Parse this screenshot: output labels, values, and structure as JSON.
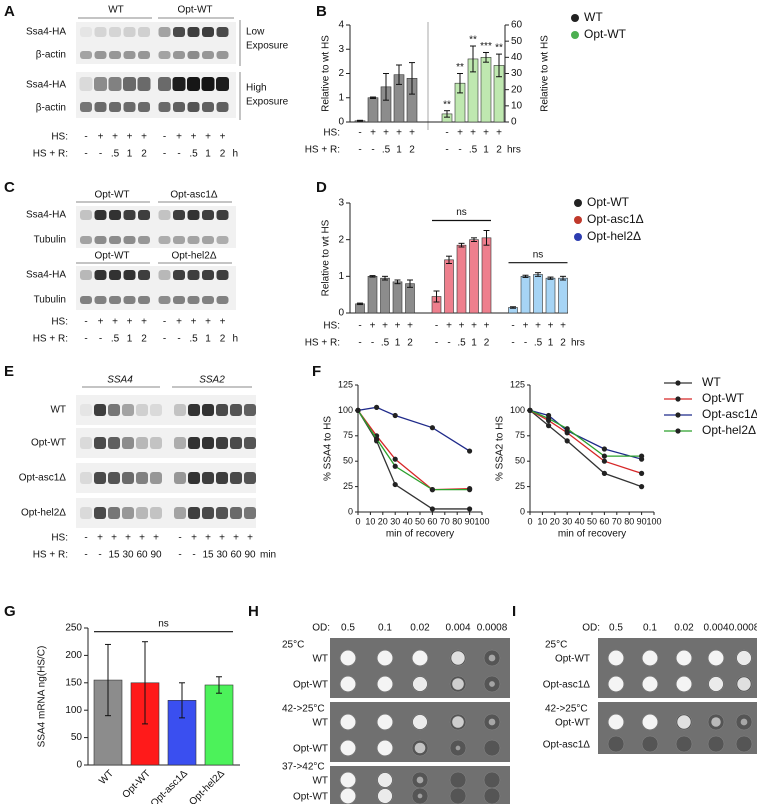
{
  "panel_labels": [
    "A",
    "B",
    "C",
    "D",
    "E",
    "F",
    "G",
    "H",
    "I"
  ],
  "blot_a": {
    "headers": [
      "WT",
      "Opt-WT"
    ],
    "rows": [
      "Ssa4-HA",
      "β-actin",
      "Ssa4-HA",
      "β-actin"
    ],
    "exposure_labels": [
      [
        "Low",
        "Exposure"
      ],
      [
        "High",
        "Exposure"
      ]
    ],
    "conditions": [
      {
        "label": "HS:",
        "values": [
          "-",
          "+",
          "+",
          "+",
          "+",
          "-",
          "+",
          "+",
          "+",
          "+"
        ]
      },
      {
        "label": "HS + R:",
        "values": [
          "-",
          "-",
          ".5",
          "1",
          "2",
          "-",
          "-",
          ".5",
          "1",
          "2"
        ]
      }
    ],
    "condition_unit": "h"
  },
  "blot_c": {
    "headers": [
      "Opt-WT",
      "Opt-asc1Δ",
      "Opt-WT",
      "Opt-hel2Δ"
    ],
    "rows": [
      "Ssa4-HA",
      "Tubulin",
      "Ssa4-HA",
      "Tubulin"
    ],
    "conditions": [
      {
        "label": "HS:",
        "values": [
          "-",
          "+",
          "+",
          "+",
          "+",
          "-",
          "+",
          "+",
          "+",
          "+"
        ]
      },
      {
        "label": "HS + R:",
        "values": [
          "-",
          "-",
          ".5",
          "1",
          "2",
          "-",
          "-",
          ".5",
          "1",
          "2"
        ]
      }
    ],
    "condition_unit": "h"
  },
  "blot_e": {
    "headers": [
      "SSA4",
      "SSA2"
    ],
    "rows": [
      "WT",
      "Opt-WT",
      "Opt-asc1Δ",
      "Opt-hel2Δ"
    ],
    "conditions": [
      {
        "label": "HS:",
        "values": [
          "-",
          "+",
          "+",
          "+",
          "+",
          "+",
          "-",
          "+",
          "+",
          "+",
          "+",
          "+"
        ]
      },
      {
        "label": "HS + R:",
        "values": [
          "-",
          "-",
          "15",
          "30",
          "60",
          "90",
          "-",
          "-",
          "15",
          "30",
          "60",
          "90"
        ]
      }
    ],
    "condition_unit": "min"
  },
  "chart_data": [
    {
      "type": "bar",
      "y_label": "Relative to wt HS",
      "y2_label": "Relative to wt HS",
      "ylim": [
        0,
        4
      ],
      "yticks": [
        0,
        1,
        2,
        3,
        4
      ],
      "y2lim": [
        0,
        60
      ],
      "y2ticks": [
        0,
        10,
        20,
        30,
        40,
        50,
        60
      ],
      "conditions": [
        {
          "label": "HS:",
          "values": [
            "-",
            "+",
            "+",
            "+",
            "+",
            "-",
            "+",
            "+",
            "+",
            "+"
          ]
        },
        {
          "label": "HS + R:",
          "values": [
            "-",
            "-",
            ".5",
            "1",
            "2",
            "-",
            "-",
            ".5",
            "1",
            "2"
          ]
        }
      ],
      "condition_unit": "hrs",
      "series": [
        {
          "name": "WT",
          "color": "#8c8c8c",
          "marker_color": "#222222",
          "values": [
            0.05,
            1.0,
            1.45,
            1.95,
            1.8,
            null,
            null,
            null,
            null,
            null
          ],
          "errors": [
            0.02,
            0.03,
            0.55,
            0.4,
            0.65,
            null,
            null,
            null,
            null,
            null
          ]
        },
        {
          "name": "Opt-WT",
          "color": "#bfe8b0",
          "marker_color": "#4caf50",
          "axis": "y2",
          "values": [
            null,
            null,
            null,
            null,
            null,
            5,
            24,
            39,
            40,
            35
          ],
          "errors": [
            null,
            null,
            null,
            null,
            null,
            2,
            6,
            8,
            3,
            7
          ]
        }
      ],
      "significance": [
        null,
        null,
        null,
        null,
        null,
        "**",
        "**",
        "**",
        "***",
        "**"
      ],
      "legend": true
    },
    {
      "type": "bar",
      "y_label": "Relative to wt HS",
      "ylim": [
        0,
        3
      ],
      "yticks": [
        0,
        1,
        2,
        3
      ],
      "conditions": [
        {
          "label": "HS:",
          "values": [
            "-",
            "+",
            "+",
            "+",
            "+",
            "-",
            "+",
            "+",
            "+",
            "+",
            "-",
            "+",
            "+",
            "+",
            "+"
          ]
        },
        {
          "label": "HS + R:",
          "values": [
            "-",
            "-",
            ".5",
            "1",
            "2",
            "-",
            "-",
            ".5",
            "1",
            "2",
            "-",
            "-",
            ".5",
            "1",
            "2"
          ]
        }
      ],
      "condition_unit": "hrs",
      "series": [
        {
          "name": "Opt-WT",
          "color": "#8c8c8c",
          "marker_color": "#222222",
          "values": [
            0.25,
            1.0,
            0.95,
            0.85,
            0.8,
            null,
            null,
            null,
            null,
            null,
            null,
            null,
            null,
            null,
            null
          ],
          "errors": [
            0.02,
            0.02,
            0.05,
            0.05,
            0.1,
            null,
            null,
            null,
            null,
            null,
            null,
            null,
            null,
            null,
            null
          ]
        },
        {
          "name": "Opt-asc1Δ",
          "color": "#ee7f8d",
          "marker_color": "#c0392b",
          "values": [
            null,
            null,
            null,
            null,
            null,
            0.45,
            1.45,
            1.85,
            2.0,
            2.05,
            null,
            null,
            null,
            null,
            null
          ],
          "errors": [
            null,
            null,
            null,
            null,
            null,
            0.15,
            0.1,
            0.05,
            0.05,
            0.2,
            null,
            null,
            null,
            null,
            null
          ]
        },
        {
          "name": "Opt-hel2Δ",
          "color": "#a6d4f5",
          "marker_color": "#2c3cb0",
          "values": [
            null,
            null,
            null,
            null,
            null,
            null,
            null,
            null,
            null,
            null,
            0.15,
            1.0,
            1.05,
            0.95,
            0.95
          ],
          "errors": [
            null,
            null,
            null,
            null,
            null,
            null,
            null,
            null,
            null,
            null,
            0.02,
            0.03,
            0.05,
            0.03,
            0.05
          ]
        }
      ],
      "annotations": [
        {
          "text": "ns",
          "series": 1
        },
        {
          "text": "ns",
          "series": 2
        }
      ],
      "legend": true
    },
    {
      "type": "line",
      "x": [
        0,
        15,
        30,
        60,
        90
      ],
      "x_label": "min of recovery",
      "y_label": "% SSA4 to HS",
      "xlim": [
        0,
        100
      ],
      "xticks": [
        0,
        10,
        20,
        30,
        40,
        50,
        60,
        70,
        80,
        90,
        100
      ],
      "ylim": [
        0,
        125
      ],
      "yticks": [
        0,
        25,
        50,
        75,
        100,
        125
      ],
      "series": [
        {
          "color": "#333333",
          "values": [
            100,
            70,
            27,
            3,
            3
          ]
        },
        {
          "color": "#d62728",
          "values": [
            100,
            75,
            52,
            22,
            23
          ]
        },
        {
          "color": "#1f2a8a",
          "values": [
            100,
            103,
            95,
            83,
            60
          ]
        },
        {
          "color": "#2ca02c",
          "values": [
            100,
            72,
            45,
            22,
            22
          ]
        }
      ]
    },
    {
      "type": "line",
      "x": [
        0,
        15,
        30,
        60,
        90
      ],
      "x_label": "min of recovery",
      "y_label": "% SSA2 to HS",
      "xlim": [
        0,
        100
      ],
      "xticks": [
        0,
        10,
        20,
        30,
        40,
        50,
        60,
        70,
        80,
        90,
        100
      ],
      "ylim": [
        0,
        125
      ],
      "yticks": [
        0,
        25,
        50,
        75,
        100,
        125
      ],
      "series": [
        {
          "name": "WT",
          "color": "#333333",
          "values": [
            100,
            85,
            70,
            38,
            25
          ]
        },
        {
          "name": "Opt-WT",
          "color": "#d62728",
          "values": [
            100,
            90,
            78,
            50,
            38
          ]
        },
        {
          "name": "Opt-asc1Δ",
          "color": "#1f2a8a",
          "values": [
            100,
            95,
            80,
            62,
            52
          ]
        },
        {
          "name": "Opt-hel2Δ",
          "color": "#2ca02c",
          "values": [
            100,
            92,
            82,
            55,
            55
          ]
        }
      ]
    },
    {
      "type": "bar",
      "y_label": "SSA4 mRNA ng(HS/C)",
      "ylim": [
        0,
        250
      ],
      "yticks": [
        0,
        50,
        100,
        150,
        200,
        250
      ],
      "categories": [
        "WT",
        "Opt-WT",
        "Opt-asc1Δ",
        "Opt-hel2Δ"
      ],
      "values": [
        155,
        150,
        118,
        146
      ],
      "errors": [
        65,
        75,
        32,
        15
      ],
      "colors": [
        "#8c8c8c",
        "#ff1a1a",
        "#3a4ff0",
        "#4cf25a"
      ],
      "annotations": [
        {
          "text": "ns"
        }
      ]
    }
  ],
  "spot_h": {
    "od_label": "OD:",
    "od": [
      "0.5",
      "0.1",
      "0.02",
      "0.004",
      "0.0008"
    ],
    "sections": [
      {
        "condition": "25°C",
        "strains": [
          "WT",
          "Opt-WT"
        ]
      },
      {
        "condition": "42->25°C",
        "strains": [
          "WT",
          "Opt-WT"
        ]
      },
      {
        "condition": "37->42°C",
        "strains": [
          "WT",
          "Opt-WT"
        ]
      }
    ]
  },
  "spot_i": {
    "od_label": "OD:",
    "od": [
      "0.5",
      "0.1",
      "0.02",
      "0.004",
      "0.0008"
    ],
    "sections": [
      {
        "condition": "25°C",
        "strains": [
          "Opt-WT",
          "Opt-asc1Δ"
        ]
      },
      {
        "condition": "42->25°C",
        "strains": [
          "Opt-WT",
          "Opt-asc1Δ"
        ]
      }
    ]
  }
}
